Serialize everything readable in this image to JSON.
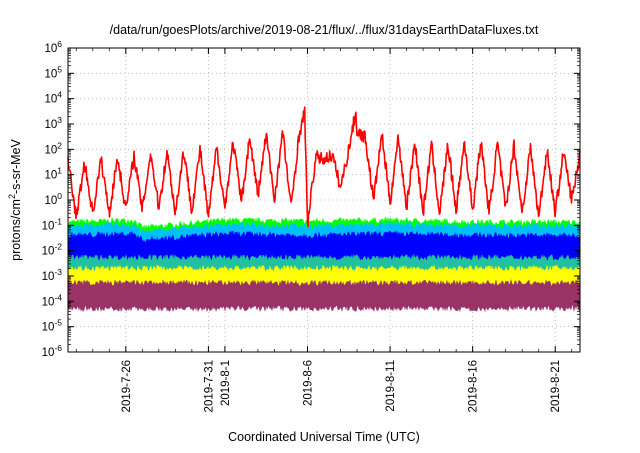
{
  "chart_data": {
    "type": "line",
    "title": "/data/run/goesPlots/archive/2019-08-21/flux/../flux/31daysEarthDataFluxes.txt",
    "xlabel": "Coordinated Universal Time (UTC)",
    "ylabel": "protons/cm²-s-sr-MeV",
    "ylabel_base": "protons/cm",
    "ylabel_sup": "2",
    "ylabel_rest": "-s-sr-MeV",
    "y_scale": "log",
    "ylim": [
      1e-06,
      1000000.0
    ],
    "xlim": [
      "2019-07-22 12:00",
      "2019-08-22 12:00"
    ],
    "grid": true,
    "grid_style": "dotted",
    "legend": "none",
    "y_tick_labels": [
      {
        "base": "10",
        "exp": "-6",
        "value": 1e-06
      },
      {
        "base": "10",
        "exp": "-5",
        "value": 1e-05
      },
      {
        "base": "10",
        "exp": "-4",
        "value": 0.0001
      },
      {
        "base": "10",
        "exp": "-3",
        "value": 0.001
      },
      {
        "base": "10",
        "exp": "-2",
        "value": 0.01
      },
      {
        "base": "10",
        "exp": "-1",
        "value": 0.1
      },
      {
        "base": "10",
        "exp": "0",
        "value": 1
      },
      {
        "base": "10",
        "exp": "1",
        "value": 10
      },
      {
        "base": "10",
        "exp": "2",
        "value": 100
      },
      {
        "base": "10",
        "exp": "3",
        "value": 1000
      },
      {
        "base": "10",
        "exp": "4",
        "value": 10000
      },
      {
        "base": "10",
        "exp": "5",
        "value": 100000
      },
      {
        "base": "10",
        "exp": "6",
        "value": 1000000
      }
    ],
    "x_tick_labels": [
      {
        "label": "2019-7-26",
        "date": "2019-07-26"
      },
      {
        "label": "2019-7-31",
        "date": "2019-07-31"
      },
      {
        "label": "2019-8-1",
        "date": "2019-08-01"
      },
      {
        "label": "2019-8-6",
        "date": "2019-08-06"
      },
      {
        "label": "2019-8-11",
        "date": "2019-08-11"
      },
      {
        "label": "2019-8-16",
        "date": "2019-08-16"
      },
      {
        "label": "2019-8-21",
        "date": "2019-08-21"
      }
    ],
    "x_grid_dates": [
      "2019-07-26",
      "2019-07-31",
      "2019-08-01",
      "2019-08-06",
      "2019-08-11",
      "2019-08-16",
      "2019-08-21"
    ],
    "series": [
      {
        "color": "#ff0000",
        "kind": "line",
        "x": [
          "2019-07-22 12:00",
          "2019-07-23 00:00",
          "2019-07-23 12:00",
          "2019-07-24 00:00",
          "2019-07-24 12:00",
          "2019-07-25 00:00",
          "2019-07-25 12:00",
          "2019-07-26 00:00",
          "2019-07-26 12:00",
          "2019-07-27 00:00",
          "2019-07-27 12:00",
          "2019-07-28 00:00",
          "2019-07-28 12:00",
          "2019-07-29 00:00",
          "2019-07-29 12:00",
          "2019-07-30 00:00",
          "2019-07-30 12:00",
          "2019-07-31 00:00",
          "2019-07-31 12:00",
          "2019-08-01 00:00",
          "2019-08-01 12:00",
          "2019-08-02 00:00",
          "2019-08-02 12:00",
          "2019-08-03 00:00",
          "2019-08-03 12:00",
          "2019-08-04 00:00",
          "2019-08-04 12:00",
          "2019-08-05 00:00",
          "2019-08-05 12:00",
          "2019-08-05 20:00",
          "2019-08-06 00:00",
          "2019-08-06 12:00",
          "2019-08-07 00:00",
          "2019-08-07 12:00",
          "2019-08-08 00:00",
          "2019-08-08 12:00",
          "2019-08-08 22:00",
          "2019-08-09 00:00",
          "2019-08-09 12:00",
          "2019-08-10 00:00",
          "2019-08-10 12:00",
          "2019-08-11 00:00",
          "2019-08-11 12:00",
          "2019-08-12 00:00",
          "2019-08-12 12:00",
          "2019-08-13 00:00",
          "2019-08-13 12:00",
          "2019-08-14 00:00",
          "2019-08-14 12:00",
          "2019-08-15 00:00",
          "2019-08-15 12:00",
          "2019-08-16 00:00",
          "2019-08-16 12:00",
          "2019-08-17 00:00",
          "2019-08-17 12:00",
          "2019-08-18 00:00",
          "2019-08-18 12:00",
          "2019-08-19 00:00",
          "2019-08-19 12:00",
          "2019-08-20 00:00",
          "2019-08-20 12:00",
          "2019-08-21 00:00",
          "2019-08-21 12:00",
          "2019-08-22 00:00",
          "2019-08-22 12:00"
        ],
        "y": [
          40,
          0.2,
          30,
          0.3,
          40,
          0.3,
          50,
          0.4,
          60,
          0.4,
          70,
          0.5,
          80,
          0.3,
          90,
          0.4,
          100,
          0.2,
          120,
          0.5,
          200,
          0.8,
          300,
          1.5,
          400,
          1.0,
          500,
          0.5,
          400,
          3000,
          0.1,
          50,
          40,
          60,
          3,
          100,
          3000,
          500,
          300,
          1.0,
          400,
          0.8,
          300,
          0.5,
          200,
          0.3,
          150,
          0.3,
          150,
          0.4,
          200,
          0.4,
          200,
          0.3,
          180,
          0.4,
          150,
          0.3,
          120,
          0.2,
          100,
          0.3,
          80,
          1.0,
          60
        ]
      },
      {
        "color": "#00ff00",
        "kind": "band",
        "x": [
          "2019-07-22 12:00",
          "2019-07-26 12:00",
          "2019-07-27 00:00",
          "2019-08-01 00:00",
          "2019-08-06 00:00",
          "2019-08-11 00:00",
          "2019-08-16 00:00",
          "2019-08-22 12:00"
        ],
        "y_low": [
          0.02,
          0.02,
          0.012,
          0.02,
          0.02,
          0.02,
          0.02,
          0.02
        ],
        "y_high": [
          0.1,
          0.12,
          0.06,
          0.12,
          0.11,
          0.12,
          0.1,
          0.1
        ]
      },
      {
        "color": "#00bfff",
        "kind": "band",
        "x": [
          "2019-07-22 12:00",
          "2019-07-26 12:00",
          "2019-07-27 00:00",
          "2019-08-01 00:00",
          "2019-08-06 00:00",
          "2019-08-11 00:00",
          "2019-08-16 00:00",
          "2019-08-22 12:00"
        ],
        "y_low": [
          0.003,
          0.003,
          0.002,
          0.003,
          0.003,
          0.003,
          0.003,
          0.003
        ],
        "y_high": [
          0.07,
          0.08,
          0.04,
          0.08,
          0.07,
          0.08,
          0.07,
          0.07
        ]
      },
      {
        "color": "#0000ff",
        "kind": "band",
        "x": [
          "2019-07-22 12:00",
          "2019-07-26 12:00",
          "2019-07-27 00:00",
          "2019-08-01 00:00",
          "2019-08-06 00:00",
          "2019-08-11 00:00",
          "2019-08-16 00:00",
          "2019-08-22 12:00"
        ],
        "y_low": [
          0.005,
          0.005,
          0.001,
          0.005,
          0.005,
          0.005,
          0.005,
          0.005
        ],
        "y_high": [
          0.03,
          0.035,
          0.02,
          0.035,
          0.03,
          0.035,
          0.03,
          0.03
        ]
      },
      {
        "color": "#20c0a0",
        "kind": "band",
        "x": [
          "2019-07-22 12:00",
          "2019-08-06 00:00",
          "2019-08-22 12:00"
        ],
        "y_low": [
          0.0012,
          0.0012,
          0.0012
        ],
        "y_high": [
          0.004,
          0.004,
          0.004
        ]
      },
      {
        "color": "#ffff00",
        "kind": "band",
        "x": [
          "2019-07-22 12:00",
          "2019-08-06 00:00",
          "2019-08-22 12:00"
        ],
        "y_low": [
          0.0002,
          0.0002,
          0.0002
        ],
        "y_high": [
          0.0015,
          0.0015,
          0.0015
        ]
      },
      {
        "color": "#993366",
        "kind": "band",
        "x": [
          "2019-07-22 12:00",
          "2019-08-06 00:00",
          "2019-08-22 12:00"
        ],
        "y_low": [
          7e-05,
          7e-05,
          7e-05
        ],
        "y_high": [
          0.0004,
          0.0004,
          0.0004
        ]
      }
    ]
  }
}
